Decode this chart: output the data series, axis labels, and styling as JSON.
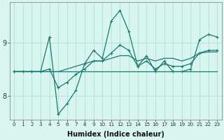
{
  "xlabel": "Humidex (Indice chaleur)",
  "x": [
    0,
    1,
    2,
    3,
    4,
    5,
    6,
    7,
    8,
    9,
    10,
    11,
    12,
    13,
    14,
    15,
    16,
    17,
    18,
    19,
    20,
    21,
    22,
    23
  ],
  "line1": [
    8.45,
    8.45,
    8.45,
    8.45,
    9.1,
    7.65,
    7.85,
    8.1,
    8.6,
    8.85,
    8.7,
    9.4,
    9.6,
    9.2,
    8.55,
    8.75,
    8.45,
    8.65,
    8.45,
    8.45,
    8.5,
    9.05,
    9.15,
    9.1
  ],
  "line2": [
    8.45,
    8.45,
    8.45,
    8.45,
    8.5,
    8.15,
    8.25,
    8.4,
    8.5,
    8.65,
    8.65,
    8.8,
    8.95,
    8.85,
    8.55,
    8.65,
    8.5,
    8.6,
    8.55,
    8.55,
    8.6,
    8.8,
    8.85,
    8.85
  ],
  "line3": [
    8.45,
    8.45,
    8.45,
    8.45,
    8.45,
    8.45,
    8.5,
    8.55,
    8.6,
    8.65,
    8.65,
    8.7,
    8.75,
    8.75,
    8.65,
    8.7,
    8.65,
    8.7,
    8.7,
    8.65,
    8.7,
    8.8,
    8.82,
    8.82
  ],
  "line4": [
    8.45,
    8.45,
    8.45,
    8.45,
    8.45,
    8.45,
    8.45,
    8.45,
    8.45,
    8.45,
    8.45,
    8.45,
    8.45,
    8.45,
    8.45,
    8.45,
    8.45,
    8.45,
    8.45,
    8.45,
    8.45,
    8.45,
    8.45,
    8.45
  ],
  "line_color": "#1a7a6e",
  "bg_color": "#d8f5f0",
  "grid_color": "#b8e4de",
  "yticks": [
    8,
    9
  ],
  "ylim": [
    7.55,
    9.75
  ],
  "xlim": [
    -0.5,
    23.5
  ]
}
